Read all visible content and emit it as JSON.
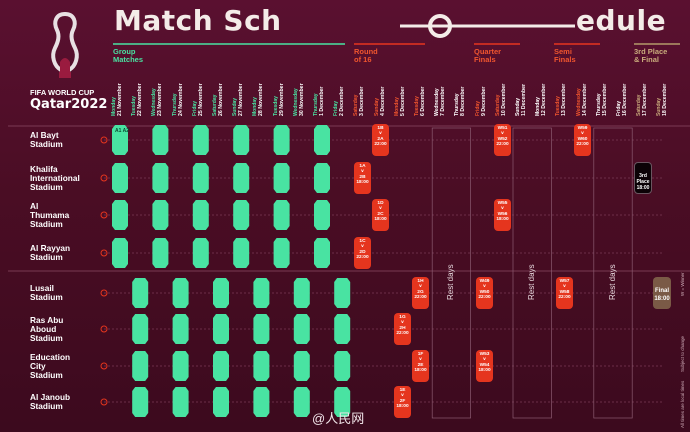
{
  "title_left": "Match Sch",
  "title_right": "edule",
  "logo": {
    "line1": "FIFA WORLD CUP",
    "line2": "Qatar2022"
  },
  "stage_labels": {
    "group": "Group\nMatches",
    "r16": "Round\nof 16",
    "qf": "Quarter\nFinals",
    "sf": "Semi\nFinals",
    "third": "3rd Place\n& Final"
  },
  "dates": [
    {
      "day": "Monday",
      "date": "21 November",
      "tone": "green"
    },
    {
      "day": "Tuesday",
      "date": "22 November",
      "tone": "green"
    },
    {
      "day": "Wednesday",
      "date": "23 November",
      "tone": "green"
    },
    {
      "day": "Thursday",
      "date": "24 November",
      "tone": "green"
    },
    {
      "day": "Friday",
      "date": "25 November",
      "tone": "green"
    },
    {
      "day": "Saturday",
      "date": "26 November",
      "tone": "green"
    },
    {
      "day": "Sunday",
      "date": "27 November",
      "tone": "green"
    },
    {
      "day": "Monday",
      "date": "28 November",
      "tone": "green"
    },
    {
      "day": "Tuesday",
      "date": "29 November",
      "tone": "green"
    },
    {
      "day": "Wednesday",
      "date": "30 November",
      "tone": "green"
    },
    {
      "day": "Thursday",
      "date": "1 December",
      "tone": "green"
    },
    {
      "day": "Friday",
      "date": "2 December",
      "tone": "green"
    },
    {
      "day": "Saturday",
      "date": "3 December",
      "tone": "red"
    },
    {
      "day": "Sunday",
      "date": "4 December",
      "tone": "red"
    },
    {
      "day": "Monday",
      "date": "5 December",
      "tone": "red"
    },
    {
      "day": "Tuesday",
      "date": "6 December",
      "tone": "red"
    },
    {
      "day": "Wednesday",
      "date": "7 December",
      "tone": "white"
    },
    {
      "day": "Thursday",
      "date": "8 December",
      "tone": "white"
    },
    {
      "day": "Friday",
      "date": "9 December",
      "tone": "red"
    },
    {
      "day": "Saturday",
      "date": "10 December",
      "tone": "red"
    },
    {
      "day": "Sunday",
      "date": "11 December",
      "tone": "white"
    },
    {
      "day": "Monday",
      "date": "12 December",
      "tone": "white"
    },
    {
      "day": "Tuesday",
      "date": "13 December",
      "tone": "red"
    },
    {
      "day": "Wednesday",
      "date": "14 December",
      "tone": "red"
    },
    {
      "day": "Thursday",
      "date": "15 December",
      "tone": "white"
    },
    {
      "day": "Friday",
      "date": "16 December",
      "tone": "white"
    },
    {
      "day": "Saturday",
      "date": "17 December",
      "tone": "gold"
    },
    {
      "day": "Sunday",
      "date": "18 December",
      "tone": "gold"
    }
  ],
  "stadiums": [
    "Al Bayt\nStadium",
    "Khalifa\nInternational\nStadium",
    "Al\nThumama\nStadium",
    "Al Rayyan\nStadium",
    "Lusail\nStadium",
    "Ras Abu\nAboud\nStadium",
    "Education\nCity\nStadium",
    "Al Janoub\nStadium"
  ],
  "first_match": {
    "line1": "A1",
    "line2": "A2"
  },
  "r16_matches": [
    {
      "stadium": 0,
      "l1": "1B",
      "l2": "2A",
      "t": "22:00"
    },
    {
      "stadium": 1,
      "l1": "1A",
      "l2": "2B",
      "t": "18:00"
    },
    {
      "stadium": 2,
      "l1": "1D",
      "l2": "2C",
      "t": "18:00"
    },
    {
      "stadium": 3,
      "l1": "1C",
      "l2": "2D",
      "t": "22:00"
    },
    {
      "stadium": 4,
      "l1": "1H",
      "l2": "2G",
      "t": "22:00"
    },
    {
      "stadium": 5,
      "l1": "1G",
      "l2": "2H",
      "t": "22:00"
    },
    {
      "stadium": 6,
      "l1": "1F",
      "l2": "2E",
      "t": "18:00"
    },
    {
      "stadium": 7,
      "l1": "1E",
      "l2": "2F",
      "t": "18:00"
    }
  ],
  "qf_matches": [
    {
      "stadium": 0,
      "l1": "W51",
      "l2": "W52",
      "t": "22:00"
    },
    {
      "stadium": 2,
      "l1": "W55",
      "l2": "W56",
      "t": "18:00"
    },
    {
      "stadium": 4,
      "l1": "W49",
      "l2": "W50",
      "t": "22:00"
    },
    {
      "stadium": 6,
      "l1": "W53",
      "l2": "W54",
      "t": "18:00"
    }
  ],
  "sf_matches": [
    {
      "stadium": 0,
      "l1": "W59",
      "l2": "W60",
      "t": "22:00"
    },
    {
      "stadium": 4,
      "l1": "W57",
      "l2": "W58",
      "t": "22:00"
    }
  ],
  "third_place": {
    "l1": "3rd",
    "l2": "Place",
    "t": "18:00"
  },
  "final": {
    "label": "Final",
    "t": "18:00"
  },
  "rest_label": "Rest days",
  "footnotes": [
    "All times are local times",
    "Subject to change",
    "W = Winner"
  ],
  "watermark": "@人民网",
  "colors": {
    "green": "#49e3a2",
    "red": "#e5351e",
    "gold": "#b49a6a",
    "bg": "#4a0d22"
  }
}
